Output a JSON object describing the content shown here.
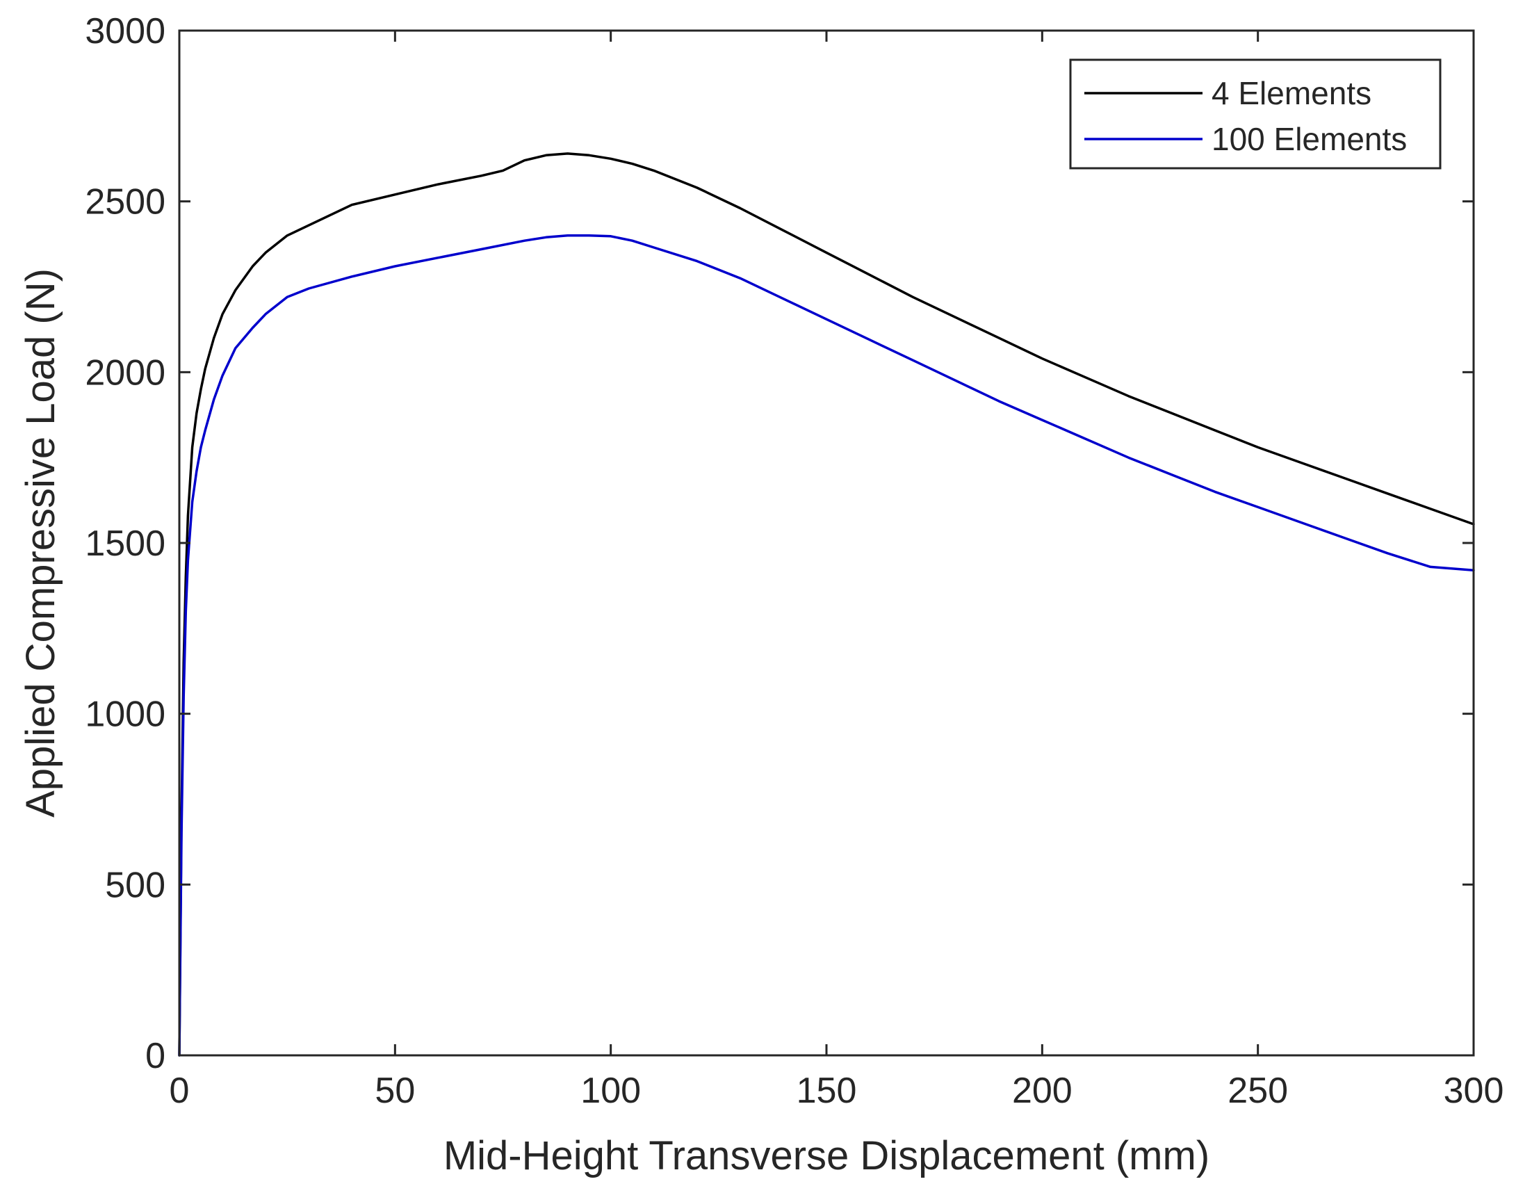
{
  "chart_data": {
    "type": "line",
    "title": "",
    "xlabel": "Mid-Height Transverse Displacement (mm)",
    "ylabel": "Applied Compressive Load (N)",
    "xlim": [
      0,
      300
    ],
    "ylim": [
      0,
      3000
    ],
    "xticks": [
      0,
      50,
      100,
      150,
      200,
      250,
      300
    ],
    "yticks": [
      0,
      500,
      1000,
      1500,
      2000,
      2500,
      3000
    ],
    "grid": false,
    "legend_position": "top-right",
    "series": [
      {
        "name": "4 Elements",
        "color": "#000000",
        "x": [
          0,
          0.5,
          1,
          1.5,
          2,
          3,
          4,
          5,
          6,
          8,
          10,
          13,
          17,
          20,
          25,
          30,
          40,
          50,
          60,
          70,
          75,
          80,
          85,
          90,
          95,
          100,
          105,
          110,
          120,
          130,
          140,
          150,
          160,
          170,
          180,
          190,
          200,
          210,
          220,
          230,
          240,
          250,
          260,
          270,
          280,
          290,
          300
        ],
        "y": [
          0,
          700,
          1150,
          1400,
          1580,
          1780,
          1880,
          1950,
          2010,
          2100,
          2170,
          2240,
          2310,
          2350,
          2400,
          2430,
          2490,
          2520,
          2550,
          2575,
          2590,
          2620,
          2635,
          2640,
          2635,
          2625,
          2610,
          2590,
          2540,
          2480,
          2415,
          2350,
          2285,
          2220,
          2160,
          2100,
          2040,
          1985,
          1930,
          1880,
          1830,
          1780,
          1735,
          1690,
          1645,
          1600,
          1555
        ]
      },
      {
        "name": "100 Elements",
        "color": "#0000cc",
        "x": [
          0,
          0.5,
          1,
          1.5,
          2,
          3,
          4,
          5,
          6,
          8,
          10,
          13,
          17,
          20,
          25,
          30,
          40,
          50,
          60,
          70,
          80,
          85,
          90,
          95,
          100,
          105,
          110,
          120,
          130,
          140,
          150,
          160,
          170,
          180,
          190,
          200,
          210,
          220,
          230,
          240,
          250,
          260,
          270,
          280,
          290,
          300
        ],
        "y": [
          0,
          650,
          1050,
          1300,
          1450,
          1620,
          1710,
          1780,
          1830,
          1920,
          1990,
          2070,
          2130,
          2170,
          2220,
          2245,
          2280,
          2310,
          2335,
          2360,
          2385,
          2395,
          2400,
          2400,
          2398,
          2385,
          2365,
          2325,
          2275,
          2215,
          2155,
          2095,
          2035,
          1975,
          1915,
          1860,
          1805,
          1750,
          1700,
          1650,
          1605,
          1560,
          1515,
          1470,
          1430,
          1420
        ]
      }
    ]
  }
}
